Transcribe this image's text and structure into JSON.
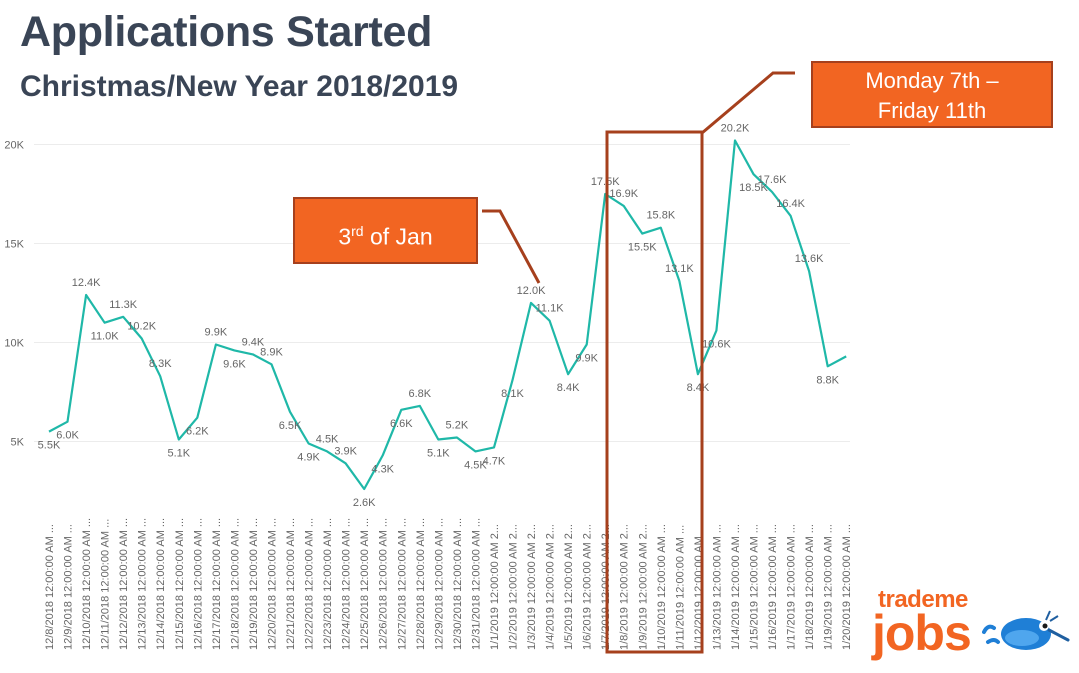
{
  "header": {
    "title": "Applications Started",
    "subtitle": "Christmas/New Year 2018/2019"
  },
  "annotations": {
    "jan3_main": "3",
    "jan3_sup": "rd",
    "jan3_rest": " of Jan",
    "week_line1": "Monday 7th –",
    "week_line2": "Friday 11th"
  },
  "logo": {
    "line1": "trademe",
    "line2": "jobs"
  },
  "colors": {
    "line": "#1fb8a8",
    "callout_fill": "#f26522",
    "callout_border": "#a6401d",
    "title": "#3a4556",
    "axis_text": "#666666",
    "grid": "#ececec"
  },
  "chart_data": {
    "type": "line",
    "title": "Applications Started",
    "subtitle": "Christmas/New Year 2018/2019",
    "ylim": [
      0,
      20000
    ],
    "grid": true,
    "y_ticks": [
      {
        "value": 5000,
        "label": "5K"
      },
      {
        "value": 10000,
        "label": "10K"
      },
      {
        "value": 15000,
        "label": "15K"
      },
      {
        "value": 20000,
        "label": "20K"
      }
    ],
    "categories": [
      "12/8/2018 12:00:00 AM ...",
      "12/9/2018 12:00:00 AM ...",
      "12/10/2018 12:00:00 AM ...",
      "12/11/2018 12:00:00 AM ...",
      "12/12/2018 12:00:00 AM ...",
      "12/13/2018 12:00:00 AM ...",
      "12/14/2018 12:00:00 AM ...",
      "12/15/2018 12:00:00 AM ...",
      "12/16/2018 12:00:00 AM ...",
      "12/17/2018 12:00:00 AM ...",
      "12/18/2018 12:00:00 AM ...",
      "12/19/2018 12:00:00 AM ...",
      "12/20/2018 12:00:00 AM ...",
      "12/21/2018 12:00:00 AM ...",
      "12/22/2018 12:00:00 AM ...",
      "12/23/2018 12:00:00 AM ...",
      "12/24/2018 12:00:00 AM ...",
      "12/25/2018 12:00:00 AM ...",
      "12/26/2018 12:00:00 AM ...",
      "12/27/2018 12:00:00 AM ...",
      "12/28/2018 12:00:00 AM ...",
      "12/29/2018 12:00:00 AM ...",
      "12/30/2018 12:00:00 AM ...",
      "12/31/2018 12:00:00 AM ...",
      "1/1/2019 12:00:00 AM 2...",
      "1/2/2019 12:00:00 AM 2...",
      "1/3/2019 12:00:00 AM 2...",
      "1/4/2019 12:00:00 AM 2...",
      "1/5/2019 12:00:00 AM 2...",
      "1/6/2019 12:00:00 AM 2...",
      "1/7/2019 12:00:00 AM 2...",
      "1/8/2019 12:00:00 AM 2...",
      "1/9/2019 12:00:00 AM 2...",
      "1/10/2019 12:00:00 AM ...",
      "1/11/2019 12:00:00 AM ...",
      "1/12/2019 12:00:00 AM ...",
      "1/13/2019 12:00:00 AM ...",
      "1/14/2019 12:00:00 AM ...",
      "1/15/2019 12:00:00 AM ...",
      "1/16/2019 12:00:00 AM ...",
      "1/17/2019 12:00:00 AM ...",
      "1/18/2019 12:00:00 AM ...",
      "1/19/2019 12:00:00 AM ...",
      "1/20/2019 12:00:00 AM ..."
    ],
    "values": [
      5500,
      6000,
      12400,
      11000,
      11300,
      10200,
      8300,
      5100,
      6200,
      9900,
      9600,
      9400,
      8900,
      6500,
      4900,
      4500,
      3900,
      2600,
      4300,
      6600,
      6800,
      5100,
      5200,
      4500,
      4700,
      8100,
      12000,
      11100,
      8400,
      9900,
      17500,
      16900,
      15500,
      15800,
      13100,
      8400,
      10600,
      20200,
      18500,
      17600,
      16400,
      13600,
      8800,
      9300
    ],
    "data_labels": [
      "5.5K",
      "6.0K",
      "12.4K",
      "11.0K",
      "11.3K",
      "10.2K",
      "8.3K",
      "5.1K",
      "6.2K",
      "9.9K",
      "9.6K",
      "9.4K",
      "8.9K",
      "6.5K",
      "4.9K",
      "4.5K",
      "3.9K",
      "2.6K",
      "4.3K",
      "6.6K",
      "6.8K",
      "5.1K",
      "5.2K",
      "4.5K",
      "4.7K",
      "8.1K",
      "12.0K",
      "11.1K",
      "8.4K",
      "9.9K",
      "17.5K",
      "16.9K",
      "15.5K",
      "15.8K",
      "13.1K",
      "8.4K",
      "10.6K",
      "20.2K",
      "18.5K",
      "17.6K",
      "16.4K",
      "13.6K",
      "8.8K",
      ""
    ]
  }
}
